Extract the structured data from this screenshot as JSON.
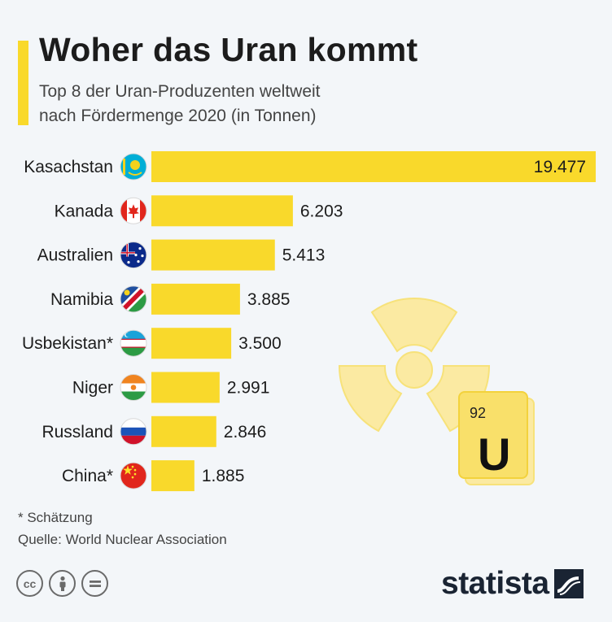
{
  "header": {
    "title": "Woher das Uran kommt",
    "subtitle_line1": "Top 8 der Uran-Produzenten weltweit",
    "subtitle_line2": "nach Fördermenge 2020 (in Tonnen)"
  },
  "chart_data": {
    "type": "bar",
    "orientation": "horizontal",
    "title": "Woher das Uran kommt",
    "subtitle": "Top 8 der Uran-Produzenten weltweit nach Fördermenge 2020 (in Tonnen)",
    "categories": [
      "Kasachstan",
      "Kanada",
      "Australien",
      "Namibia",
      "Usbekistan*",
      "Niger",
      "Russland",
      "China*"
    ],
    "values": [
      19477,
      6203,
      5413,
      3885,
      3500,
      2991,
      2846,
      1885
    ],
    "value_labels": [
      "19.477",
      "6.203",
      "5.413",
      "3.885",
      "3.500",
      "2.991",
      "2.846",
      "1.885"
    ],
    "flags": [
      "kazakhstan-flag-icon",
      "canada-flag-icon",
      "australia-flag-icon",
      "namibia-flag-icon",
      "uzbekistan-flag-icon",
      "niger-flag-icon",
      "russia-flag-icon",
      "china-flag-icon"
    ],
    "bar_color": "#f9d92b",
    "grid": false,
    "legend": "none"
  },
  "decoration": {
    "icon": "radiation-symbol-icon",
    "element_number": "92",
    "element_symbol": "U"
  },
  "footer": {
    "footnote": "* Schätzung",
    "source": "Quelle: World Nuclear Association",
    "license_icons": [
      "cc-icon",
      "attribution-icon",
      "no-derivatives-icon"
    ],
    "cc_label": "cc",
    "brand": "statista"
  },
  "colors": {
    "accent": "#f9d92b",
    "background": "#f3f6f9",
    "text": "#1c1c1c",
    "brand": "#1a2433"
  }
}
